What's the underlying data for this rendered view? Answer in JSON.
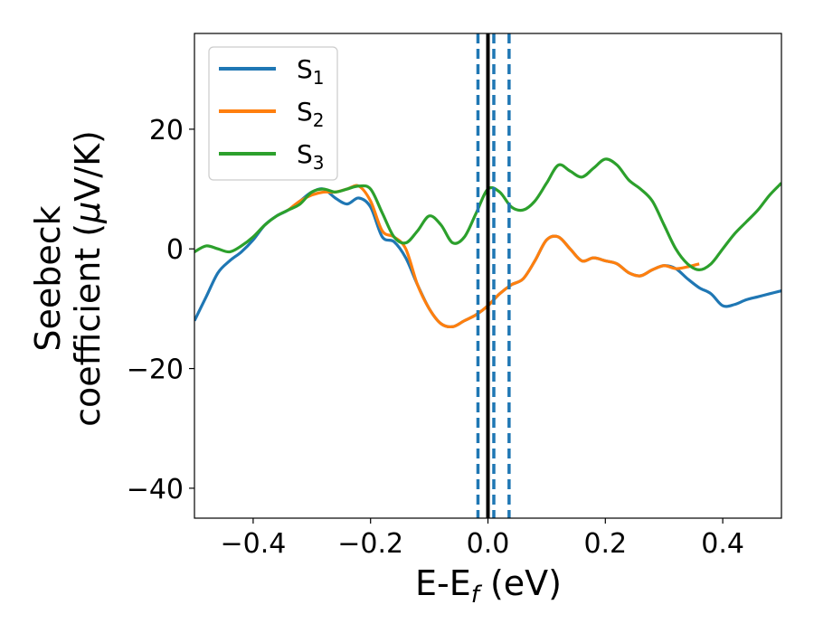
{
  "chart_data": {
    "type": "line",
    "title": "",
    "xlabel": {
      "main": "E-E",
      "sub": "f",
      "unit": " (eV)"
    },
    "ylabel": {
      "line1": "Seebeck",
      "line2_text": "coefficient  (",
      "line2_mu": "μ",
      "line2_unit": "V/K)"
    },
    "xlim": [
      -0.5,
      0.5
    ],
    "ylim": [
      -45,
      36
    ],
    "x_ticks": [
      -0.4,
      -0.2,
      0.0,
      0.2,
      0.4
    ],
    "x_tick_labels": [
      "−0.4",
      "−0.2",
      "0.0",
      "0.2",
      "0.4"
    ],
    "y_ticks": [
      -40,
      -20,
      0,
      20
    ],
    "y_tick_labels": [
      "−40",
      "−20",
      "0",
      "20"
    ],
    "legend_position": "top-left",
    "vertical_lines": [
      {
        "x": -0.017,
        "style": "dashed",
        "color": "#1f77b4"
      },
      {
        "x": 0.0,
        "style": "solid",
        "color": "#000000"
      },
      {
        "x": 0.01,
        "style": "dashed",
        "color": "#1f77b4"
      },
      {
        "x": 0.036,
        "style": "dashed",
        "color": "#1f77b4"
      }
    ],
    "series": [
      {
        "name": "S1",
        "label_main": "S",
        "label_sub": "1",
        "color": "#1f77b4",
        "x": [
          -0.5,
          -0.48,
          -0.46,
          -0.44,
          -0.42,
          -0.4,
          -0.38,
          -0.36,
          -0.34,
          -0.32,
          -0.3,
          -0.28,
          -0.26,
          -0.24,
          -0.22,
          -0.2,
          -0.18,
          -0.16,
          -0.14,
          -0.12,
          -0.1,
          -0.08,
          -0.06,
          -0.04,
          -0.02,
          0.0,
          0.02,
          0.04,
          0.06,
          0.08,
          0.1,
          0.12,
          0.14,
          0.16,
          0.18,
          0.2,
          0.22,
          0.24,
          0.26,
          0.28,
          0.3,
          0.32,
          0.34,
          0.36,
          0.38,
          0.4,
          0.42,
          0.44,
          0.46,
          0.48,
          0.5
        ],
        "values": [
          -12,
          -8,
          -4,
          -2,
          -0.5,
          1.5,
          4,
          5.5,
          6.5,
          8,
          9.5,
          10,
          8.5,
          7.5,
          8.5,
          7,
          2,
          1.2,
          -1.5,
          -6,
          -10,
          -12.5,
          -13,
          -12,
          -11,
          -9.5,
          -7.5,
          -6,
          -5,
          -2,
          1.5,
          2,
          0,
          -2,
          -1.5,
          -2,
          -2.5,
          -4,
          -4.5,
          -3.5,
          -2.8,
          -3.3,
          -5,
          -6.5,
          -7.5,
          -9.5,
          -9.3,
          -8.5,
          -8,
          -7.5,
          -7
        ]
      },
      {
        "name": "S2",
        "label_main": "S",
        "label_sub": "2",
        "color": "#ff7f0e",
        "x": [
          -0.34,
          -0.32,
          -0.3,
          -0.28,
          -0.26,
          -0.24,
          -0.22,
          -0.2,
          -0.18,
          -0.16,
          -0.14,
          -0.12,
          -0.1,
          -0.08,
          -0.06,
          -0.04,
          -0.02,
          0.0,
          0.02,
          0.04,
          0.06,
          0.08,
          0.1,
          0.12,
          0.14,
          0.16,
          0.18,
          0.2,
          0.22,
          0.24,
          0.26,
          0.28,
          0.3,
          0.32,
          0.34,
          0.36
        ],
        "values": [
          6.5,
          8,
          9,
          9.5,
          9.5,
          10,
          10.5,
          8,
          3,
          2,
          0,
          -6,
          -10,
          -12.5,
          -13,
          -12,
          -11,
          -9.5,
          -7.5,
          -6,
          -5,
          -2,
          1.5,
          2,
          0,
          -2,
          -1.5,
          -2,
          -2.5,
          -4,
          -4.5,
          -3.5,
          -2.8,
          -3.3,
          -3,
          -2.5
        ]
      },
      {
        "name": "S3",
        "label_main": "S",
        "label_sub": "3",
        "color": "#2ca02c",
        "x": [
          -0.5,
          -0.48,
          -0.46,
          -0.44,
          -0.42,
          -0.4,
          -0.38,
          -0.36,
          -0.34,
          -0.32,
          -0.3,
          -0.28,
          -0.26,
          -0.24,
          -0.22,
          -0.2,
          -0.18,
          -0.16,
          -0.14,
          -0.12,
          -0.1,
          -0.08,
          -0.06,
          -0.04,
          -0.02,
          0.0,
          0.02,
          0.04,
          0.06,
          0.08,
          0.1,
          0.12,
          0.14,
          0.16,
          0.18,
          0.2,
          0.22,
          0.24,
          0.26,
          0.28,
          0.3,
          0.32,
          0.34,
          0.36,
          0.38,
          0.4,
          0.42,
          0.44,
          0.46,
          0.48,
          0.5
        ],
        "values": [
          -0.5,
          0.5,
          0,
          -0.5,
          0.5,
          2,
          4,
          5.5,
          6.5,
          7.5,
          9.5,
          10,
          9.5,
          10,
          10.5,
          10,
          6,
          2,
          1,
          3,
          5.5,
          4,
          1,
          2,
          6,
          10,
          9.5,
          7,
          6.5,
          8,
          11,
          14,
          13,
          12,
          13.5,
          15,
          14,
          11.5,
          10,
          8,
          4,
          0,
          -2.5,
          -3.5,
          -2.5,
          0,
          2.5,
          4.5,
          6.5,
          9,
          11
        ]
      }
    ]
  }
}
